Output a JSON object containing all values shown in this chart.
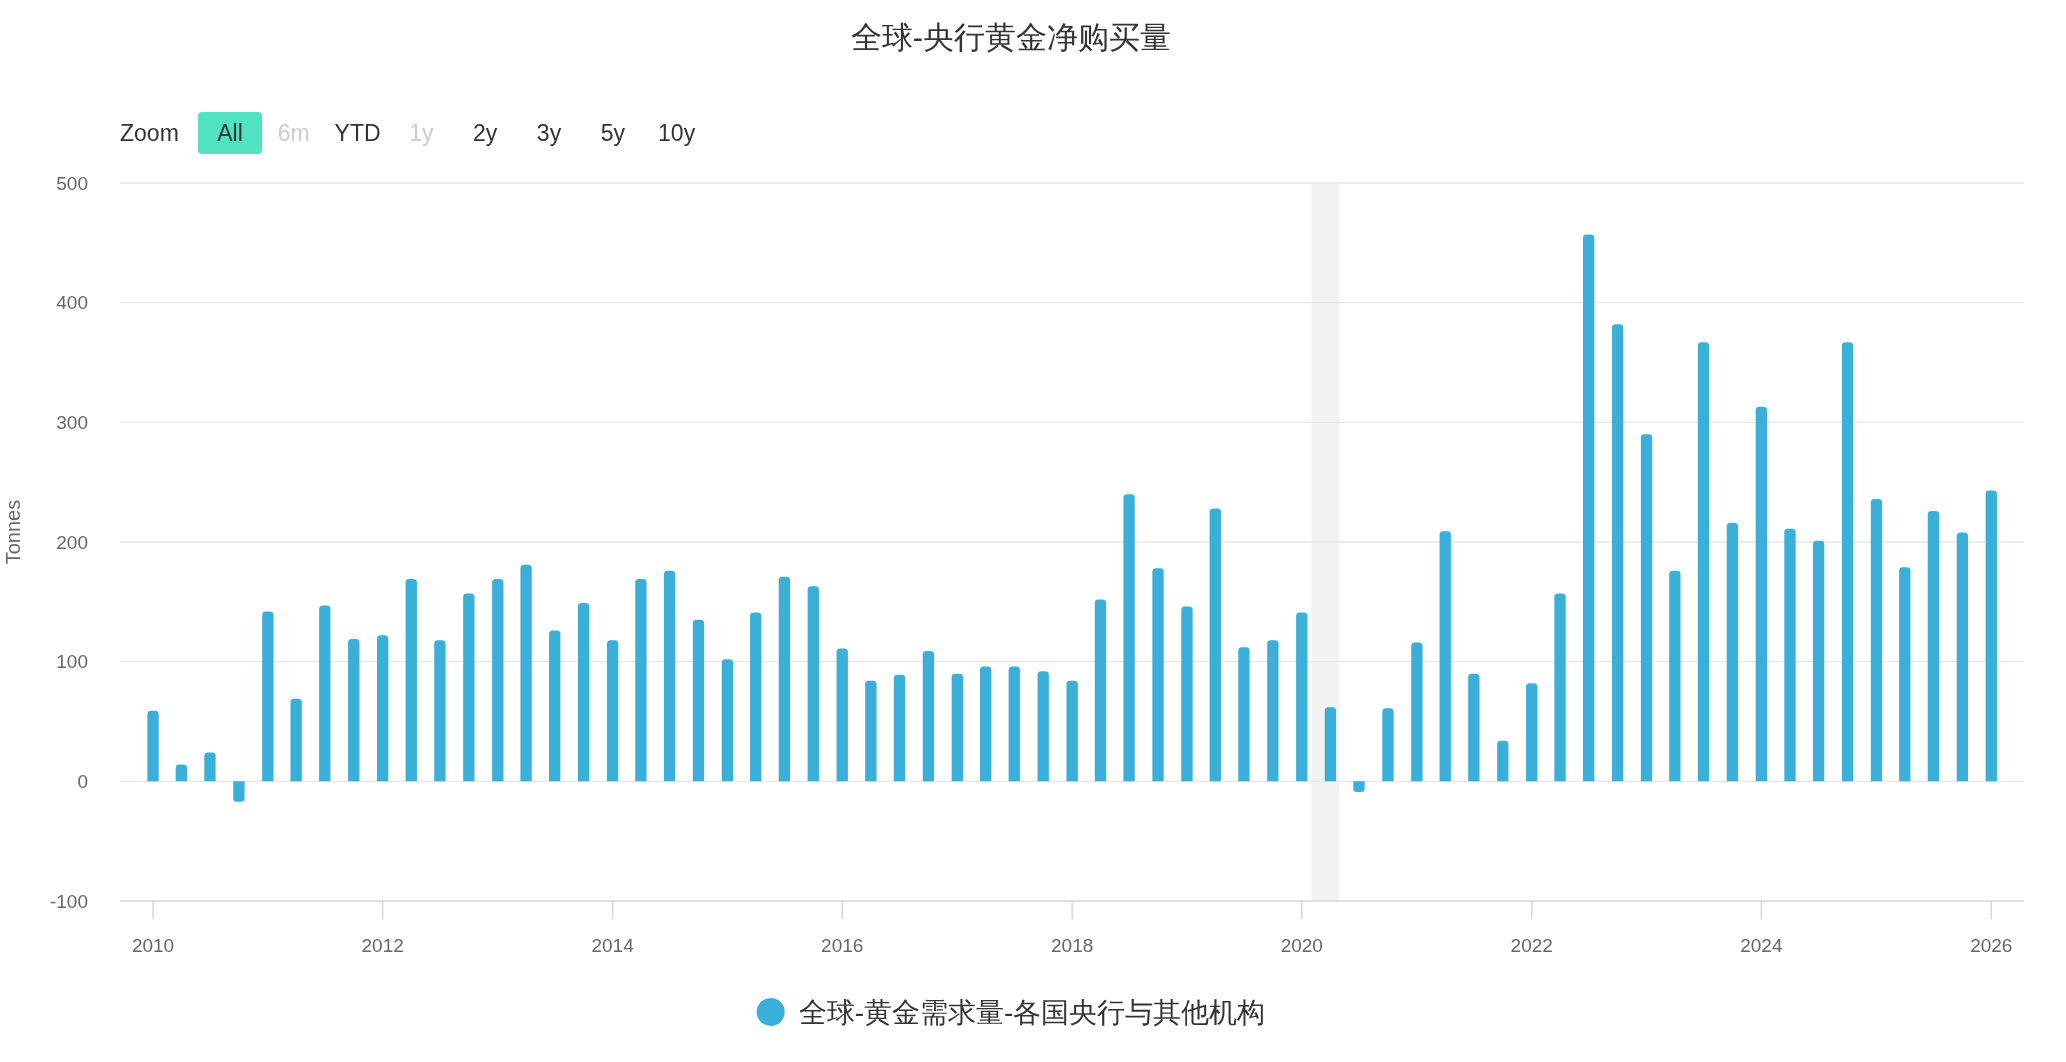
{
  "chart_data": {
    "type": "bar",
    "title": "全球-央行黄金净购买量",
    "ylabel": "Tonnes",
    "annotations": [
      "Zoom",
      "All",
      "6m",
      "YTD",
      "1y",
      "2y",
      "3y",
      "5y",
      "10y"
    ],
    "x": [
      "2010-01",
      "2010-04",
      "2010-07",
      "2010-10",
      "2011-01",
      "2011-04",
      "2011-07",
      "2011-10",
      "2012-01",
      "2012-04",
      "2012-07",
      "2012-10",
      "2013-01",
      "2013-04",
      "2013-07",
      "2013-10",
      "2014-01",
      "2014-04",
      "2014-07",
      "2014-10",
      "2015-01",
      "2015-04",
      "2015-07",
      "2015-10",
      "2016-01",
      "2016-04",
      "2016-07",
      "2016-10",
      "2017-01",
      "2017-04",
      "2017-07",
      "2017-10",
      "2018-01",
      "2018-04",
      "2018-07",
      "2018-10",
      "2019-01",
      "2019-04",
      "2019-07",
      "2019-10",
      "2020-01",
      "2020-04",
      "2020-07",
      "2020-10",
      "2021-01",
      "2021-04",
      "2021-07",
      "2021-10",
      "2022-01",
      "2022-04",
      "2022-07",
      "2022-10",
      "2023-01",
      "2023-04",
      "2023-07",
      "2023-10",
      "2024-01",
      "2024-04",
      "2024-07",
      "2024-10",
      "2025-01",
      "2025-04",
      "2025-07",
      "2025-10",
      "2026-01"
    ],
    "series": [
      {
        "name": "全球-黄金需求量-各国央行与其他机构",
        "color": "#3aafda",
        "values": [
          59,
          14,
          24,
          -17,
          142,
          69,
          147,
          119,
          122,
          169,
          118,
          157,
          169,
          181,
          126,
          149,
          118,
          169,
          176,
          135,
          102,
          141,
          171,
          163,
          111,
          84,
          89,
          109,
          90,
          96,
          96,
          92,
          84,
          152,
          240,
          178,
          146,
          228,
          112,
          118,
          141,
          62,
          -9,
          61,
          116,
          209,
          90,
          34,
          82,
          157,
          457,
          382,
          290,
          176,
          367,
          216,
          313,
          211,
          201,
          367,
          236,
          179,
          226,
          208,
          243
        ]
      }
    ],
    "xlim": [
      "2009-09-18",
      "2026-04-15"
    ],
    "xticks": [
      "2010",
      "2012",
      "2014",
      "2016",
      "2018",
      "2020",
      "2022",
      "2024",
      "2026"
    ],
    "ylim": [
      -100,
      500
    ],
    "yticks": [
      -100,
      0,
      100,
      200,
      300,
      400,
      500
    ],
    "bands": [
      {
        "axis": "x",
        "from": "2020-02-01",
        "to": "2020-04-30",
        "color": "#f2f2f2"
      }
    ],
    "grid": "y",
    "legend": "bottom"
  }
}
